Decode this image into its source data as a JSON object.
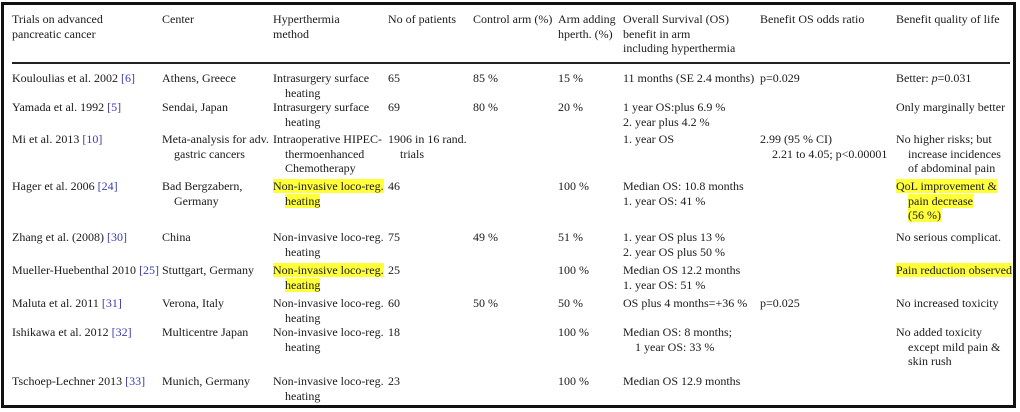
{
  "highlight_color": "#ffff3a",
  "reference_color": "#3b3bb0",
  "headers": [
    [
      "Trials on advanced",
      "pancreatic cancer"
    ],
    [
      "Center"
    ],
    [
      "Hyperthermia",
      "method"
    ],
    [
      "No of patients"
    ],
    [
      "Control arm (%)"
    ],
    [
      "Arm adding",
      "hperth. (%)"
    ],
    [
      "Overall Survival (OS)",
      "benefit in arm",
      "including hyperthermia"
    ],
    [
      "Benefit OS odds ratio"
    ],
    [
      "Benefit quality of life"
    ]
  ],
  "rows": [
    {
      "trial": "Kouloulias et al. 2002",
      "ref": "[6]",
      "center": [
        "Athens, Greece"
      ],
      "method": [
        "Intrasurgery surface",
        "heating"
      ],
      "patients": [
        "65"
      ],
      "control": "85 %",
      "arm": "15 %",
      "os": [
        "11 months (SE 2.4 months)"
      ],
      "odds": [
        "p=0.029"
      ],
      "qol": [
        "Better: p=0.031"
      ],
      "highlight_method": false,
      "highlight_qol": false
    },
    {
      "trial": "Yamada et al. 1992",
      "ref": "[5]",
      "center": [
        "Sendai, Japan"
      ],
      "method": [
        "Intrasurgery surface",
        "heating"
      ],
      "patients": [
        "69"
      ],
      "control": "80 %",
      "arm": "20 %",
      "os": [
        "1 year OS:plus 6.9 %",
        "2. year plus 4.2 %"
      ],
      "odds": [],
      "qol": [
        "Only marginally better"
      ],
      "highlight_method": false,
      "highlight_qol": false
    },
    {
      "trial": "Mi et al. 2013",
      "ref": "[10]",
      "center": [
        "Meta-analysis for adv.",
        "gastric cancers"
      ],
      "method": [
        "Intraoperative HIPEC-",
        "thermoenhanced",
        "Chemotherapy"
      ],
      "patients": [
        "1906 in 16 rand.",
        "trials"
      ],
      "control": "",
      "arm": "",
      "os": [
        "1. year OS"
      ],
      "odds": [
        "2.99 (95 % CI)",
        "2.21 to 4.05; p<0.00001"
      ],
      "qol": [
        "No higher risks; but",
        "increase incidences",
        "of abdominal pain"
      ],
      "highlight_method": false,
      "highlight_qol": false
    },
    {
      "trial": "Hager et al. 2006",
      "ref": "[24]",
      "center": [
        "Bad Bergzabern,",
        "Germany"
      ],
      "method": [
        "Non-invasive loco-reg.",
        "heating"
      ],
      "patients": [
        "46"
      ],
      "control": "",
      "arm": "100 %",
      "os": [
        "Median OS: 10.8 months",
        "1. year OS: 41 %"
      ],
      "odds": [],
      "qol": [
        "QoL improvement &",
        "pain decrease",
        "(56 %)"
      ],
      "highlight_method": true,
      "highlight_qol": true
    },
    {
      "trial": "Zhang et al. (2008)",
      "ref": "[30]",
      "center": [
        "China"
      ],
      "method": [
        "Non-invasive loco-reg.",
        "heating"
      ],
      "patients": [
        "75"
      ],
      "control": "49 %",
      "arm": "51 %",
      "os": [
        "1. year OS plus 13 %",
        "2. year OS plus 50 %"
      ],
      "odds": [],
      "qol": [
        "No serious complicat."
      ],
      "highlight_method": false,
      "highlight_qol": false
    },
    {
      "trial": "Mueller-Huebenthal 2010",
      "ref": "[25]",
      "center": [
        "Stuttgart, Germany"
      ],
      "method": [
        "Non-invasive loco-reg.",
        "heating"
      ],
      "patients": [
        "25"
      ],
      "control": "",
      "arm": "100 %",
      "os": [
        "Median OS 12.2 months",
        "1. year OS: 51 %"
      ],
      "odds": [],
      "qol": [
        "Pain reduction observed"
      ],
      "highlight_method": true,
      "highlight_qol": true
    },
    {
      "trial": "Maluta et al. 2011",
      "ref": "[31]",
      "center": [
        "Verona, Italy"
      ],
      "method": [
        "Non-invasive loco-reg.",
        "heating"
      ],
      "patients": [
        "60"
      ],
      "control": "50 %",
      "arm": "50 %",
      "os": [
        "OS plus 4 months=+36 %"
      ],
      "odds": [
        "p=0.025"
      ],
      "qol": [
        "No increased toxicity"
      ],
      "highlight_method": false,
      "highlight_qol": false
    },
    {
      "trial": "Ishikawa et al. 2012",
      "ref": "[32]",
      "center": [
        "Multicentre Japan"
      ],
      "method": [
        "Non-invasive loco-reg.",
        "heating"
      ],
      "patients": [
        "18"
      ],
      "control": "",
      "arm": "100 %",
      "os": [
        "Median OS: 8 months;",
        "1 year OS: 33 %"
      ],
      "odds": [],
      "qol": [
        "No added toxicity",
        "except mild pain &",
        "skin rush"
      ],
      "highlight_method": false,
      "highlight_qol": false
    },
    {
      "trial": "Tschoep-Lechner 2013",
      "ref": "[33]",
      "center": [
        "Munich, Germany"
      ],
      "method": [
        "Non-invasive loco-reg.",
        "heating"
      ],
      "patients": [
        "23"
      ],
      "control": "",
      "arm": "100 %",
      "os": [
        "Median OS 12.9 months"
      ],
      "odds": [],
      "qol": [],
      "highlight_method": false,
      "highlight_qol": false
    }
  ]
}
